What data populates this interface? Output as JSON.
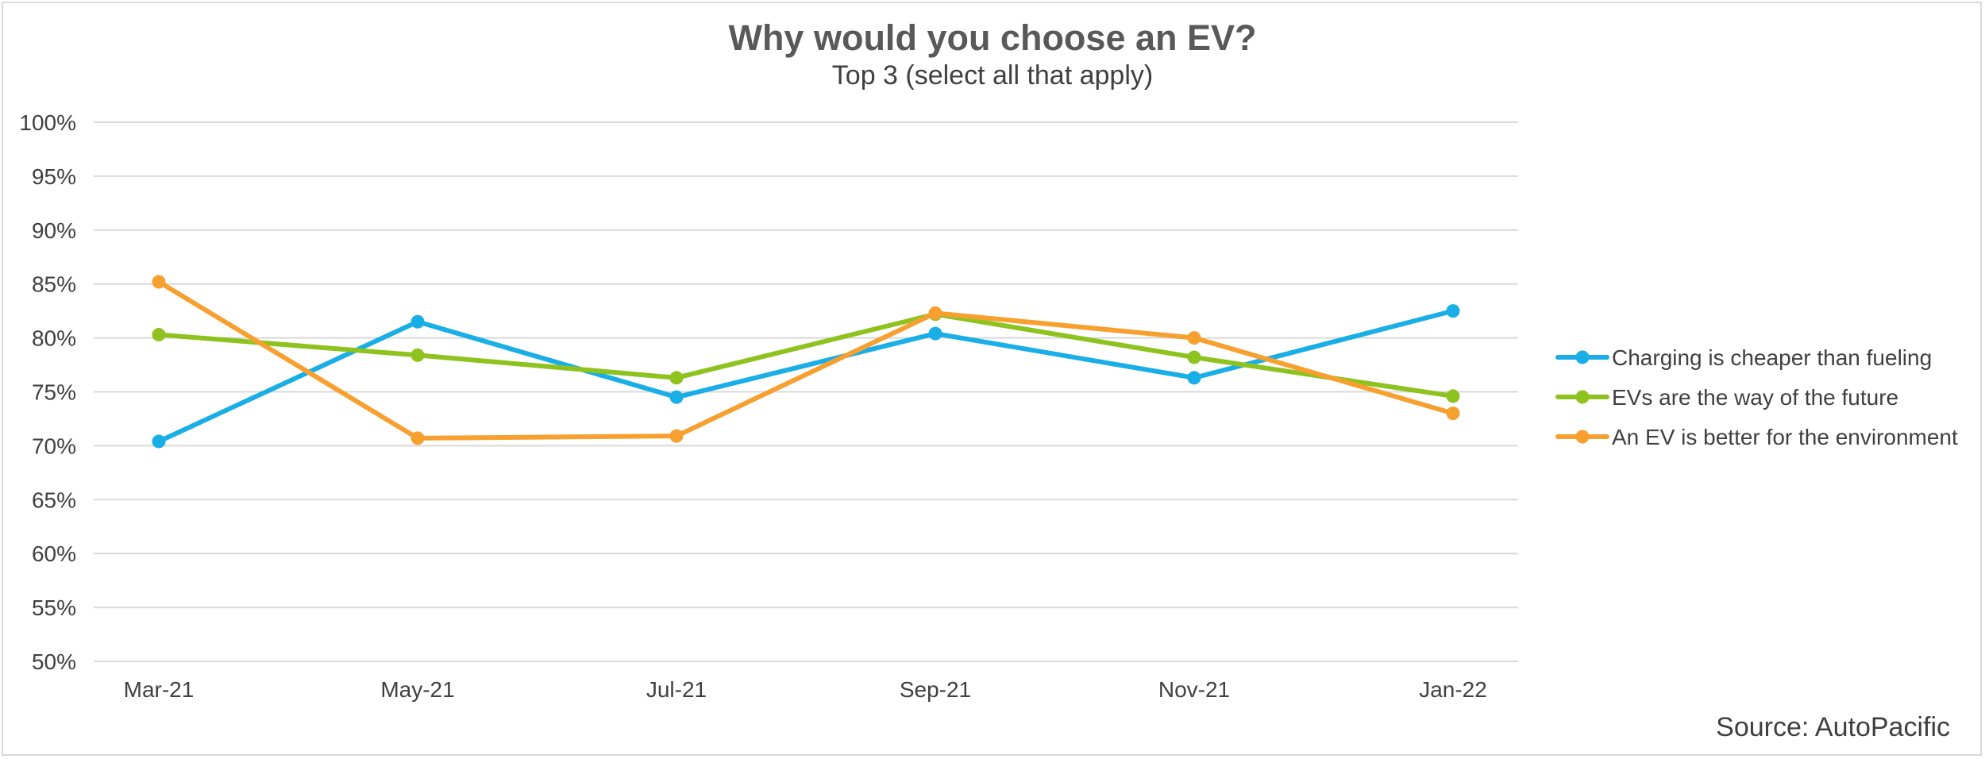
{
  "chart_data": {
    "type": "line",
    "title": "Why would you choose an EV?",
    "subtitle": "Top 3 (select all that apply)",
    "categories": [
      "Mar-21",
      "May-21",
      "Jul-21",
      "Sep-21",
      "Nov-21",
      "Jan-22"
    ],
    "ylim": [
      0.5,
      1.0
    ],
    "yticks": [
      "50%",
      "55%",
      "60%",
      "65%",
      "70%",
      "75%",
      "80%",
      "85%",
      "90%",
      "95%",
      "100%"
    ],
    "grid": true,
    "legend_position": "right",
    "series": [
      {
        "name": "Charging is cheaper than fueling",
        "color": "#1aaee6",
        "values": [
          0.704,
          0.815,
          0.745,
          0.804,
          0.763,
          0.825
        ]
      },
      {
        "name": "EVs are the way of the future",
        "color": "#8ec31f",
        "values": [
          0.803,
          0.784,
          0.763,
          0.822,
          0.782,
          0.746
        ]
      },
      {
        "name": "An EV is better for the environment",
        "color": "#f7a030",
        "values": [
          0.852,
          0.707,
          0.709,
          0.823,
          0.8,
          0.73
        ]
      }
    ],
    "source": "Source: AutoPacific"
  }
}
